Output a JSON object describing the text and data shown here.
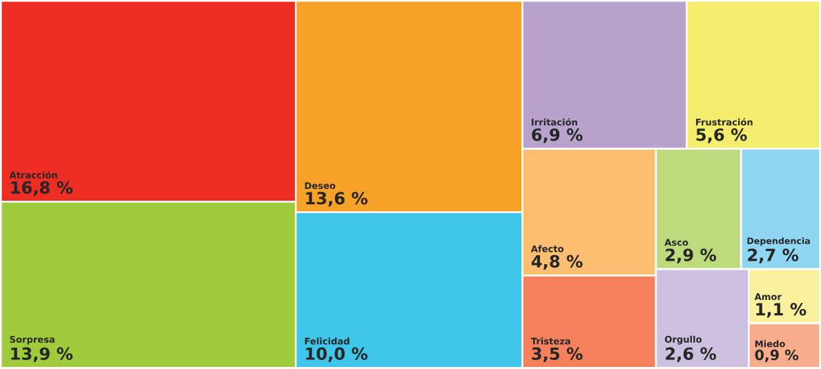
{
  "chart_data": {
    "type": "other",
    "categories": [
      "Atracción",
      "Sorpresa",
      "Deseo",
      "Felicidad",
      "Irritación",
      "Frustración",
      "Afecto",
      "Tristeza",
      "Dependencia",
      "Asco",
      "Orgullo",
      "Amor",
      "Miedo"
    ],
    "values": [
      16.8,
      13.9,
      13.6,
      10.0,
      6.9,
      5.6,
      4.8,
      3.5,
      2.7,
      2.9,
      2.6,
      1.1,
      0.9
    ],
    "value_labels": [
      "16,8 %",
      "13,9 %",
      "13,6 %",
      "10,0 %",
      "6,9 %",
      "5,6 %",
      "4,8 %",
      "3,5 %",
      "2,7 %",
      "2,9 %",
      "2,6 %",
      "1,1 %",
      "0,9 %"
    ],
    "colors": [
      "#ee2e24",
      "#a0cb3c",
      "#f6a229",
      "#40c5eb",
      "#b8a3cc",
      "#f5ed6e",
      "#fcbf72",
      "#f4805c",
      "#8ed6f2",
      "#bddb7c",
      "#cdc0df",
      "#f9f19e",
      "#f7ac8c"
    ]
  }
}
